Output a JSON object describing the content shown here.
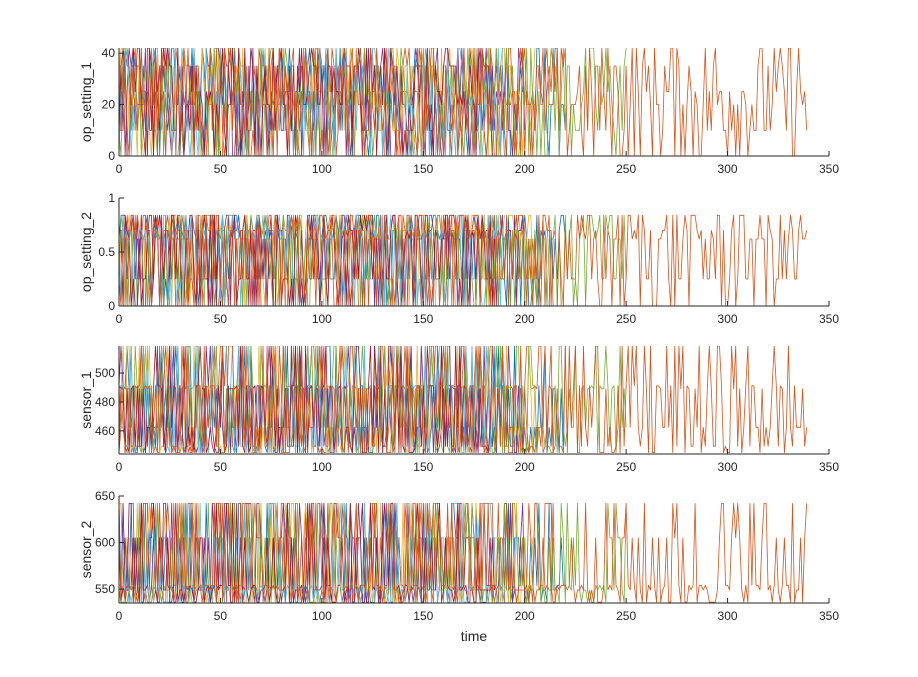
{
  "chart_data": [
    {
      "type": "line",
      "ylabel": "op_setting_1",
      "xlabel": "",
      "xlim": [
        0,
        350
      ],
      "ylim": [
        0,
        42
      ],
      "xticks": [
        0,
        50,
        100,
        150,
        200,
        250,
        300,
        350
      ],
      "yticks": [
        0,
        20,
        40
      ],
      "levels": [
        0,
        10,
        20,
        25,
        35,
        42
      ],
      "dense_until": 218,
      "series": [
        {
          "color": "#0072BD",
          "end": 220
        },
        {
          "color": "#D95319",
          "end": 215
        },
        {
          "color": "#EDB120",
          "end": 205
        },
        {
          "color": "#7E2F8E",
          "end": 200
        },
        {
          "color": "#77AC30",
          "end": 250
        },
        {
          "color": "#4DBEEE",
          "end": 190
        },
        {
          "color": "#A2142F",
          "end": 185
        },
        {
          "color": "#D95319",
          "end": 339
        }
      ]
    },
    {
      "type": "line",
      "ylabel": "op_setting_2",
      "xlabel": "",
      "xlim": [
        0,
        350
      ],
      "ylim": [
        0,
        1
      ],
      "xticks": [
        0,
        50,
        100,
        150,
        200,
        250,
        300,
        350
      ],
      "yticks": [
        0,
        0.5,
        1
      ],
      "levels": [
        0,
        0.25,
        0.62,
        0.7,
        0.84
      ],
      "dense_until": 218,
      "series": [
        {
          "color": "#0072BD",
          "end": 220
        },
        {
          "color": "#D95319",
          "end": 215
        },
        {
          "color": "#EDB120",
          "end": 205
        },
        {
          "color": "#7E2F8E",
          "end": 200
        },
        {
          "color": "#77AC30",
          "end": 250
        },
        {
          "color": "#4DBEEE",
          "end": 190
        },
        {
          "color": "#A2142F",
          "end": 185
        },
        {
          "color": "#D95319",
          "end": 339
        }
      ]
    },
    {
      "type": "line",
      "ylabel": "sensor_1",
      "xlabel": "",
      "xlim": [
        0,
        350
      ],
      "ylim": [
        444,
        518.7
      ],
      "xticks": [
        0,
        50,
        100,
        150,
        200,
        250,
        300,
        350
      ],
      "yticks": [
        460,
        480,
        500
      ],
      "levels": [
        445.0,
        449.4,
        462.5,
        489.1,
        491.2,
        518.7
      ],
      "dense_until": 218,
      "series": [
        {
          "color": "#0072BD",
          "end": 220
        },
        {
          "color": "#D95319",
          "end": 215
        },
        {
          "color": "#EDB120",
          "end": 205
        },
        {
          "color": "#7E2F8E",
          "end": 200
        },
        {
          "color": "#77AC30",
          "end": 250
        },
        {
          "color": "#4DBEEE",
          "end": 190
        },
        {
          "color": "#A2142F",
          "end": 185
        },
        {
          "color": "#D95319",
          "end": 339
        }
      ]
    },
    {
      "type": "line",
      "ylabel": "sensor_2",
      "xlabel": "time",
      "xlim": [
        0,
        350
      ],
      "ylim": [
        535,
        650
      ],
      "xticks": [
        0,
        50,
        100,
        150,
        200,
        250,
        300,
        350
      ],
      "yticks": [
        550,
        600,
        650
      ],
      "levels": [
        536,
        549,
        554,
        605,
        642
      ],
      "dense_until": 218,
      "series": [
        {
          "color": "#0072BD",
          "end": 220
        },
        {
          "color": "#D95319",
          "end": 215
        },
        {
          "color": "#EDB120",
          "end": 205
        },
        {
          "color": "#7E2F8E",
          "end": 200
        },
        {
          "color": "#77AC30",
          "end": 250
        },
        {
          "color": "#4DBEEE",
          "end": 190
        },
        {
          "color": "#A2142F",
          "end": 185
        },
        {
          "color": "#D95319",
          "end": 339
        }
      ]
    }
  ]
}
